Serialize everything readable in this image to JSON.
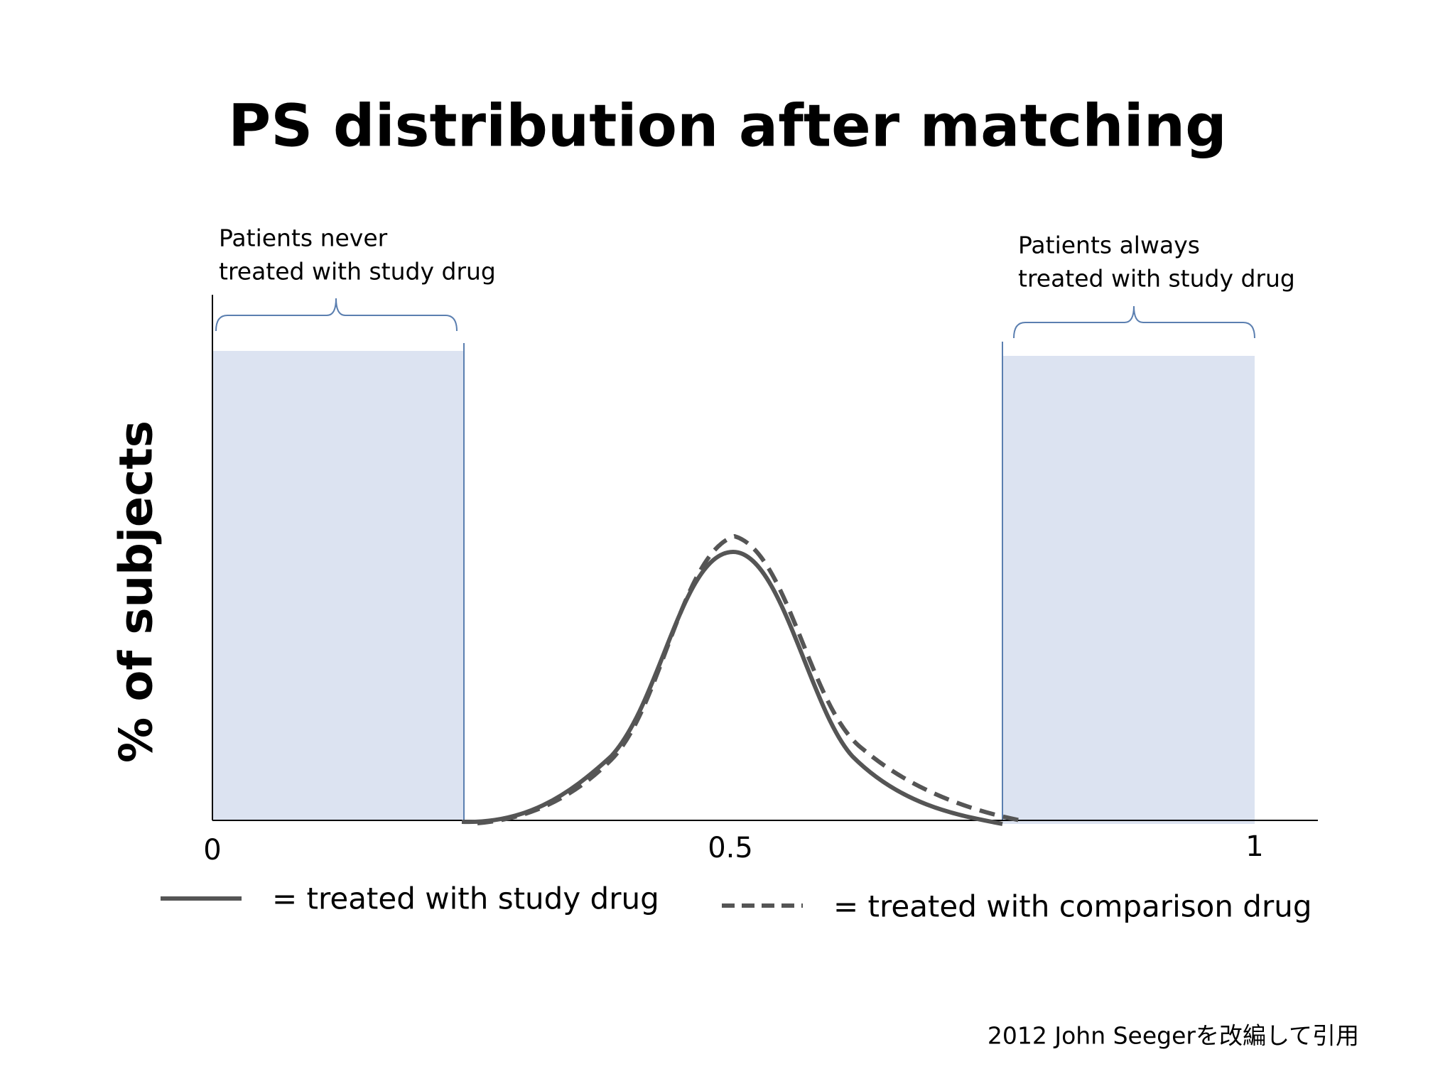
{
  "title": "PS distribution after matching",
  "y_axis": {
    "label": "% of subjects"
  },
  "x_axis": {
    "ticks": [
      0,
      0.5,
      1
    ]
  },
  "annotations": [
    {
      "lines": [
        "Patients never",
        "treated with study drug"
      ]
    },
    {
      "lines": [
        "Patients always",
        "treated with study drug"
      ]
    }
  ],
  "legend": [
    {
      "label": "= treated with study drug"
    },
    {
      "label": "= treated with comparison drug"
    }
  ],
  "footer": "2012 John Seegerを改編して引用"
}
